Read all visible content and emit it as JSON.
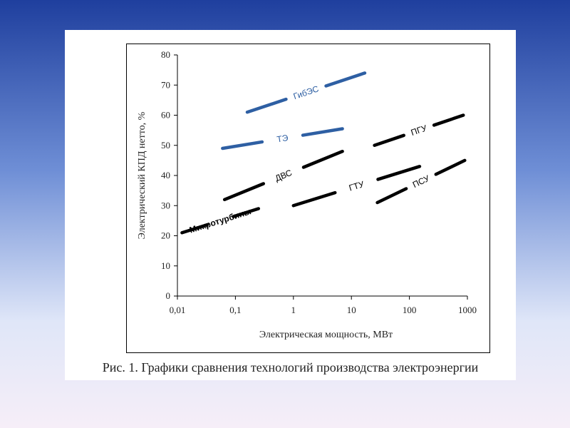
{
  "chart_data": {
    "type": "line",
    "xlabel": "Электрическая мощность, МВт",
    "ylabel": "Электрический КПД нетто, %",
    "xscale": "log",
    "xlim": [
      0.01,
      1000
    ],
    "ylim": [
      0,
      80
    ],
    "x_ticks": [
      "0,01",
      "0,1",
      "1",
      "10",
      "100",
      "1000"
    ],
    "x_tick_values": [
      0.01,
      0.1,
      1,
      10,
      100,
      1000
    ],
    "y_ticks": [
      0,
      10,
      20,
      30,
      40,
      50,
      60,
      70,
      80
    ],
    "grid": false,
    "series": [
      {
        "name": "ГибЭС",
        "color": "#2e5fa3",
        "style": "dashed",
        "x": [
          0.16,
          17
        ],
        "y": [
          61,
          74
        ]
      },
      {
        "name": "ТЭ",
        "color": "#2e5fa3",
        "style": "dashed",
        "x": [
          0.06,
          7
        ],
        "y": [
          49,
          55.5
        ]
      },
      {
        "name": "ДВС",
        "color": "#000000",
        "style": "dashed",
        "x": [
          0.065,
          7
        ],
        "y": [
          32,
          48
        ]
      },
      {
        "name": "ПГУ",
        "color": "#000000",
        "style": "dashed",
        "x": [
          25,
          850
        ],
        "y": [
          50,
          60
        ]
      },
      {
        "name": "Микротурбины",
        "color": "#000000",
        "style": "dashed",
        "x": [
          0.012,
          0.25
        ],
        "y": [
          21,
          29
        ]
      },
      {
        "name": "ГТУ",
        "color": "#000000",
        "style": "dashed",
        "x": [
          1,
          150
        ],
        "y": [
          30,
          43
        ]
      },
      {
        "name": "ПСУ",
        "color": "#000000",
        "style": "dashed",
        "x": [
          28,
          900
        ],
        "y": [
          31,
          45
        ]
      }
    ]
  },
  "caption": "Рис. 1. Графики сравнения технологий производства электроэнергии"
}
